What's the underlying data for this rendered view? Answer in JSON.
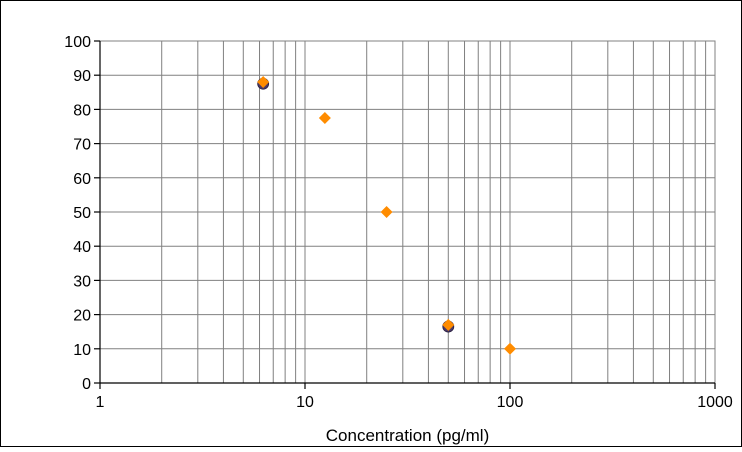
{
  "chart_data": {
    "type": "scatter",
    "xlabel": "Concentration (pg/ml)",
    "ylabel": "",
    "xscale": "log",
    "xlim": [
      1,
      1000
    ],
    "ylim": [
      0,
      100
    ],
    "x_ticks": [
      1,
      10,
      100,
      1000
    ],
    "x_tick_labels": [
      "1",
      "10",
      "100",
      "1000"
    ],
    "y_ticks": [
      0,
      10,
      20,
      30,
      40,
      50,
      60,
      70,
      80,
      90,
      100
    ],
    "y_tick_labels": [
      "0",
      "10",
      "20",
      "30",
      "40",
      "50",
      "60",
      "70",
      "80",
      "90",
      "100"
    ],
    "grid": true,
    "legend": "none",
    "series": [
      {
        "marker": "diamond",
        "color": "#ff8c00",
        "points": [
          {
            "x": 6.25,
            "y": 88
          },
          {
            "x": 12.5,
            "y": 77.5
          },
          {
            "x": 25,
            "y": 50
          },
          {
            "x": 50,
            "y": 17
          },
          {
            "x": 100,
            "y": 10
          }
        ]
      },
      {
        "marker": "circle",
        "color": "#4a3a6a",
        "points": [
          {
            "x": 6.25,
            "y": 87.5
          },
          {
            "x": 50,
            "y": 16.5
          }
        ]
      }
    ]
  }
}
